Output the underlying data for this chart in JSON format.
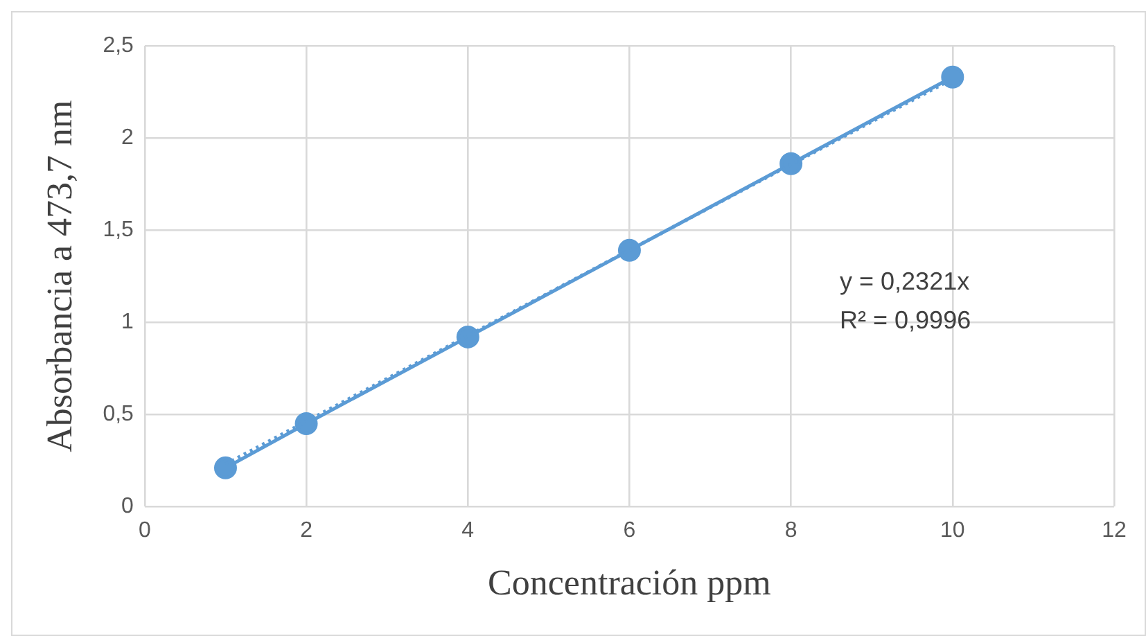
{
  "chart_data": {
    "type": "scatter",
    "xlabel": "Concentración ppm",
    "ylabel": "Absorbancia a 473,7 nm",
    "series": [
      {
        "type": "line",
        "color": "#5b9bd5",
        "marker": "circle",
        "line_style": "solid",
        "x": [
          1,
          2,
          4,
          6,
          8,
          10
        ],
        "values": [
          0.21,
          0.45,
          0.92,
          1.39,
          1.86,
          2.33
        ]
      },
      {
        "type": "line",
        "color": "#5b9bd5",
        "marker": "none",
        "line_style": "dotted",
        "x": [
          1,
          10
        ],
        "values": [
          0.23,
          2.32
        ]
      }
    ],
    "xlim": [
      0,
      12
    ],
    "xticks": [
      0,
      2,
      4,
      6,
      8,
      10,
      12
    ],
    "ylim": [
      0,
      2.5
    ],
    "yticks": [
      0,
      {
        "value": 0.5,
        "label": "0,5"
      },
      1,
      {
        "value": 1.5,
        "label": "1,5"
      },
      2,
      {
        "value": 2.5,
        "label": "2,5"
      }
    ],
    "grid": true,
    "legend": false,
    "annotations": [
      "y = 0,2321x",
      "R² = 0,9996"
    ]
  }
}
